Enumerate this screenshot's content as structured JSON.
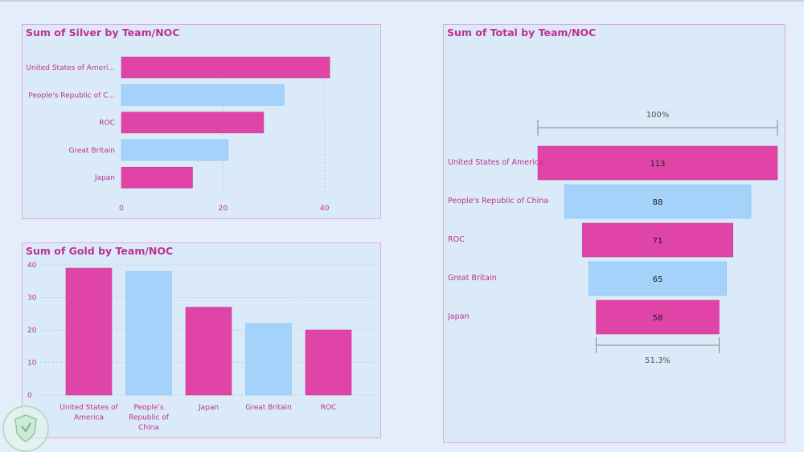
{
  "colors": {
    "pink": "#df44a6",
    "blue": "#a4d2fb",
    "title": "#c0308f"
  },
  "chart_data": [
    {
      "id": "silver",
      "type": "bar",
      "orientation": "horizontal",
      "title": "Sum of Silver by Team/NOC",
      "categories": [
        "United States of Ameri...",
        "People's Republic of C...",
        "ROC",
        "Great Britain",
        "Japan"
      ],
      "values": [
        41,
        32,
        28,
        21,
        14
      ],
      "xlim": [
        0,
        47
      ],
      "xticks": [
        "0",
        "20",
        "40"
      ],
      "xlabel": "",
      "ylabel": ""
    },
    {
      "id": "gold",
      "type": "bar",
      "orientation": "vertical",
      "title": "Sum of Gold by Team/NOC",
      "categories": [
        [
          "United States of",
          "America"
        ],
        [
          "People's",
          "Republic of",
          "China"
        ],
        [
          "Japan"
        ],
        [
          "Great Britain"
        ],
        [
          "ROC"
        ]
      ],
      "values": [
        39,
        38,
        27,
        22,
        20
      ],
      "ylim": [
        0,
        40
      ],
      "yticks": [
        "0",
        "10",
        "20",
        "30",
        "40"
      ],
      "xlabel": "",
      "ylabel": ""
    },
    {
      "id": "total",
      "type": "funnel",
      "title": "Sum of Total by Team/NOC",
      "categories": [
        "United States of America",
        "People's Republic of China",
        "ROC",
        "Great Britain",
        "Japan"
      ],
      "values": [
        113,
        88,
        71,
        65,
        58
      ],
      "value_labels": [
        "113",
        "88",
        "71",
        "65",
        "58"
      ],
      "top_percent": "100%",
      "bottom_percent": "51.3%"
    }
  ]
}
